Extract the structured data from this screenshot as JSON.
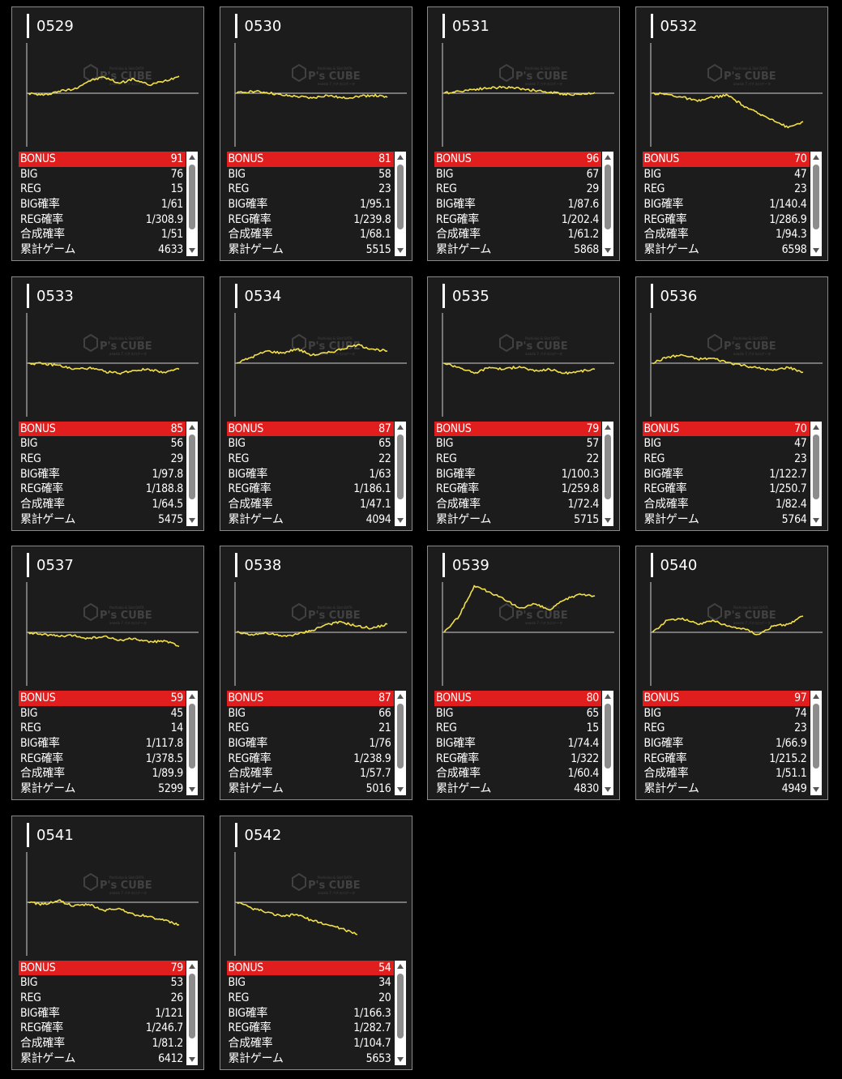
{
  "labels": {
    "bonus": "BONUS",
    "big": "BIG",
    "reg": "REG",
    "big_rate": "BIG確率",
    "reg_rate": "REG確率",
    "combined_rate": "合成確率",
    "total_games": "累計ゲーム"
  },
  "machines": [
    {
      "id": "0529",
      "bonus": "91",
      "big": "76",
      "reg": "15",
      "big_rate": "1/61",
      "reg_rate": "1/308.9",
      "combined_rate": "1/51",
      "total_games": "4633"
    },
    {
      "id": "0530",
      "bonus": "81",
      "big": "58",
      "reg": "23",
      "big_rate": "1/95.1",
      "reg_rate": "1/239.8",
      "combined_rate": "1/68.1",
      "total_games": "5515"
    },
    {
      "id": "0531",
      "bonus": "96",
      "big": "67",
      "reg": "29",
      "big_rate": "1/87.6",
      "reg_rate": "1/202.4",
      "combined_rate": "1/61.2",
      "total_games": "5868"
    },
    {
      "id": "0532",
      "bonus": "70",
      "big": "47",
      "reg": "23",
      "big_rate": "1/140.4",
      "reg_rate": "1/286.9",
      "combined_rate": "1/94.3",
      "total_games": "6598"
    },
    {
      "id": "0533",
      "bonus": "85",
      "big": "56",
      "reg": "29",
      "big_rate": "1/97.8",
      "reg_rate": "1/188.8",
      "combined_rate": "1/64.5",
      "total_games": "5475"
    },
    {
      "id": "0534",
      "bonus": "87",
      "big": "65",
      "reg": "22",
      "big_rate": "1/63",
      "reg_rate": "1/186.1",
      "combined_rate": "1/47.1",
      "total_games": "4094"
    },
    {
      "id": "0535",
      "bonus": "79",
      "big": "57",
      "reg": "22",
      "big_rate": "1/100.3",
      "reg_rate": "1/259.8",
      "combined_rate": "1/72.4",
      "total_games": "5715"
    },
    {
      "id": "0536",
      "bonus": "70",
      "big": "47",
      "reg": "23",
      "big_rate": "1/122.7",
      "reg_rate": "1/250.7",
      "combined_rate": "1/82.4",
      "total_games": "5764"
    },
    {
      "id": "0537",
      "bonus": "59",
      "big": "45",
      "reg": "14",
      "big_rate": "1/117.8",
      "reg_rate": "1/378.5",
      "combined_rate": "1/89.9",
      "total_games": "5299"
    },
    {
      "id": "0538",
      "bonus": "87",
      "big": "66",
      "reg": "21",
      "big_rate": "1/76",
      "reg_rate": "1/238.9",
      "combined_rate": "1/57.7",
      "total_games": "5016"
    },
    {
      "id": "0539",
      "bonus": "80",
      "big": "65",
      "reg": "15",
      "big_rate": "1/74.4",
      "reg_rate": "1/322",
      "combined_rate": "1/60.4",
      "total_games": "4830"
    },
    {
      "id": "0540",
      "bonus": "97",
      "big": "74",
      "reg": "23",
      "big_rate": "1/66.9",
      "reg_rate": "1/215.2",
      "combined_rate": "1/51.1",
      "total_games": "4949"
    },
    {
      "id": "0541",
      "bonus": "79",
      "big": "53",
      "reg": "26",
      "big_rate": "1/121",
      "reg_rate": "1/246.7",
      "combined_rate": "1/81.2",
      "total_games": "6412"
    },
    {
      "id": "0542",
      "bonus": "54",
      "big": "34",
      "reg": "20",
      "big_rate": "1/166.3",
      "reg_rate": "1/282.7",
      "combined_rate": "1/104.7",
      "total_games": "5653"
    }
  ],
  "colors": {
    "line": "#f2e04a",
    "bonus_bar": "#e01e1e",
    "card_bg": "#1c1c1c",
    "card_border": "#8a8a8a"
  },
  "watermark": {
    "brand": "P's CUBE",
    "top": "Pachinko & Slot DATA",
    "bottom": "anaslo 7 パチスロデータ"
  },
  "chart_data": [
    {
      "type": "line",
      "title": "0529",
      "x": [
        0,
        0.1,
        0.2,
        0.3,
        0.4,
        0.5,
        0.6,
        0.7,
        0.8,
        0.9,
        1.0
      ],
      "y": [
        0,
        -0.05,
        0.05,
        0.1,
        0.3,
        0.4,
        0.25,
        0.35,
        0.2,
        0.3,
        0.42
      ]
    },
    {
      "type": "line",
      "title": "0530",
      "x": [
        0,
        0.1,
        0.2,
        0.3,
        0.4,
        0.5,
        0.6,
        0.7,
        0.8,
        0.9,
        1.0
      ],
      "y": [
        0,
        0.05,
        0.02,
        -0.05,
        -0.08,
        -0.12,
        -0.05,
        -0.12,
        -0.08,
        -0.05,
        -0.1
      ]
    },
    {
      "type": "line",
      "title": "0531",
      "x": [
        0,
        0.1,
        0.2,
        0.3,
        0.4,
        0.5,
        0.6,
        0.7,
        0.8,
        0.9,
        1.0
      ],
      "y": [
        0,
        0.05,
        0.1,
        0.13,
        0.15,
        0.12,
        0.07,
        0.02,
        -0.02,
        -0.03,
        0.02
      ]
    },
    {
      "type": "line",
      "title": "0532",
      "x": [
        0,
        0.1,
        0.2,
        0.3,
        0.4,
        0.5,
        0.6,
        0.7,
        0.8,
        0.9,
        1.0
      ],
      "y": [
        0,
        -0.03,
        -0.1,
        -0.2,
        -0.1,
        -0.05,
        -0.3,
        -0.5,
        -0.65,
        -0.85,
        -0.7
      ]
    },
    {
      "type": "line",
      "title": "0533",
      "x": [
        0,
        0.1,
        0.2,
        0.3,
        0.4,
        0.5,
        0.6,
        0.7,
        0.8,
        0.9,
        1.0
      ],
      "y": [
        0,
        -0.02,
        -0.05,
        -0.15,
        -0.12,
        -0.2,
        -0.25,
        -0.18,
        -0.15,
        -0.22,
        -0.15
      ]
    },
    {
      "type": "line",
      "title": "0534",
      "x": [
        0,
        0.1,
        0.2,
        0.3,
        0.4,
        0.5,
        0.6,
        0.7,
        0.8,
        0.9,
        1.0
      ],
      "y": [
        0,
        0.15,
        0.3,
        0.25,
        0.35,
        0.2,
        0.25,
        0.35,
        0.45,
        0.35,
        0.3
      ]
    },
    {
      "type": "line",
      "title": "0535",
      "x": [
        0,
        0.1,
        0.2,
        0.3,
        0.4,
        0.5,
        0.6,
        0.7,
        0.8,
        0.9,
        1.0
      ],
      "y": [
        0,
        -0.1,
        -0.25,
        -0.1,
        -0.15,
        -0.08,
        -0.2,
        -0.15,
        -0.25,
        -0.2,
        -0.15
      ]
    },
    {
      "type": "line",
      "title": "0536",
      "x": [
        0,
        0.1,
        0.2,
        0.3,
        0.4,
        0.5,
        0.6,
        0.7,
        0.8,
        0.9,
        1.0
      ],
      "y": [
        0,
        0.15,
        0.2,
        0.1,
        0.12,
        0.02,
        -0.05,
        -0.12,
        -0.18,
        -0.1,
        -0.22
      ]
    },
    {
      "type": "line",
      "title": "0537",
      "x": [
        0,
        0.1,
        0.2,
        0.3,
        0.4,
        0.5,
        0.6,
        0.7,
        0.8,
        0.9,
        1.0
      ],
      "y": [
        0,
        -0.05,
        -0.1,
        -0.08,
        -0.15,
        -0.1,
        -0.2,
        -0.15,
        -0.25,
        -0.2,
        -0.35
      ]
    },
    {
      "type": "line",
      "title": "0538",
      "x": [
        0,
        0.1,
        0.2,
        0.3,
        0.4,
        0.5,
        0.6,
        0.7,
        0.8,
        0.9,
        1.0
      ],
      "y": [
        0,
        -0.05,
        -0.02,
        -0.1,
        -0.05,
        0.05,
        0.2,
        0.25,
        0.15,
        0.1,
        0.2
      ]
    },
    {
      "type": "line",
      "title": "0539",
      "x": [
        0,
        0.1,
        0.2,
        0.3,
        0.4,
        0.5,
        0.6,
        0.7,
        0.8,
        0.9,
        1.0
      ],
      "y": [
        0,
        0.4,
        1.15,
        1.0,
        0.8,
        0.6,
        0.7,
        0.55,
        0.8,
        0.95,
        0.9
      ]
    },
    {
      "type": "line",
      "title": "0540",
      "x": [
        0,
        0.1,
        0.2,
        0.3,
        0.4,
        0.5,
        0.6,
        0.7,
        0.8,
        0.9,
        1.0
      ],
      "y": [
        0,
        0.3,
        0.35,
        0.2,
        0.3,
        0.15,
        0.1,
        -0.05,
        0.15,
        0.2,
        0.4
      ]
    },
    {
      "type": "line",
      "title": "0541",
      "x": [
        0,
        0.1,
        0.2,
        0.3,
        0.4,
        0.5,
        0.6,
        0.7,
        0.8,
        0.9,
        1.0
      ],
      "y": [
        0,
        -0.05,
        0.05,
        -0.1,
        -0.05,
        -0.2,
        -0.15,
        -0.3,
        -0.35,
        -0.45,
        -0.55
      ]
    },
    {
      "type": "line",
      "title": "0542",
      "x": [
        0,
        0.1,
        0.2,
        0.3,
        0.4,
        0.5,
        0.6,
        0.7,
        0.8
      ],
      "y": [
        0,
        -0.15,
        -0.25,
        -0.35,
        -0.3,
        -0.45,
        -0.55,
        -0.65,
        -0.8
      ]
    }
  ]
}
